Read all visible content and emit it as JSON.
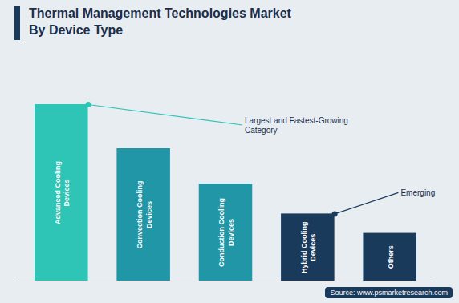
{
  "chart_data": {
    "type": "bar",
    "title": "Thermal Management Technologies Market",
    "subtitle": "By Device Type",
    "categories": [
      "Advanced Cooling\nDevices",
      "Convection Cooling\nDevices",
      "Conduction Cooling\nDevices",
      "Hybrid Cooling\nDevices",
      "Others"
    ],
    "values": [
      100,
      75,
      55,
      38,
      27
    ],
    "colors": [
      "#2ec4b6",
      "#2196a6",
      "#2196a6",
      "#1a3a5c",
      "#1a3a5c"
    ],
    "ylim": [
      0,
      130
    ],
    "tick_labels": false,
    "grid": false,
    "annotations": [
      {
        "text": "Largest and Fastest-Growing\nCategory",
        "category": "Advanced Cooling\nDevices"
      },
      {
        "text": "Emerging",
        "category": "Hybrid Cooling\nDevices"
      }
    ],
    "source": "Source: www.psmarketresearch.com"
  }
}
